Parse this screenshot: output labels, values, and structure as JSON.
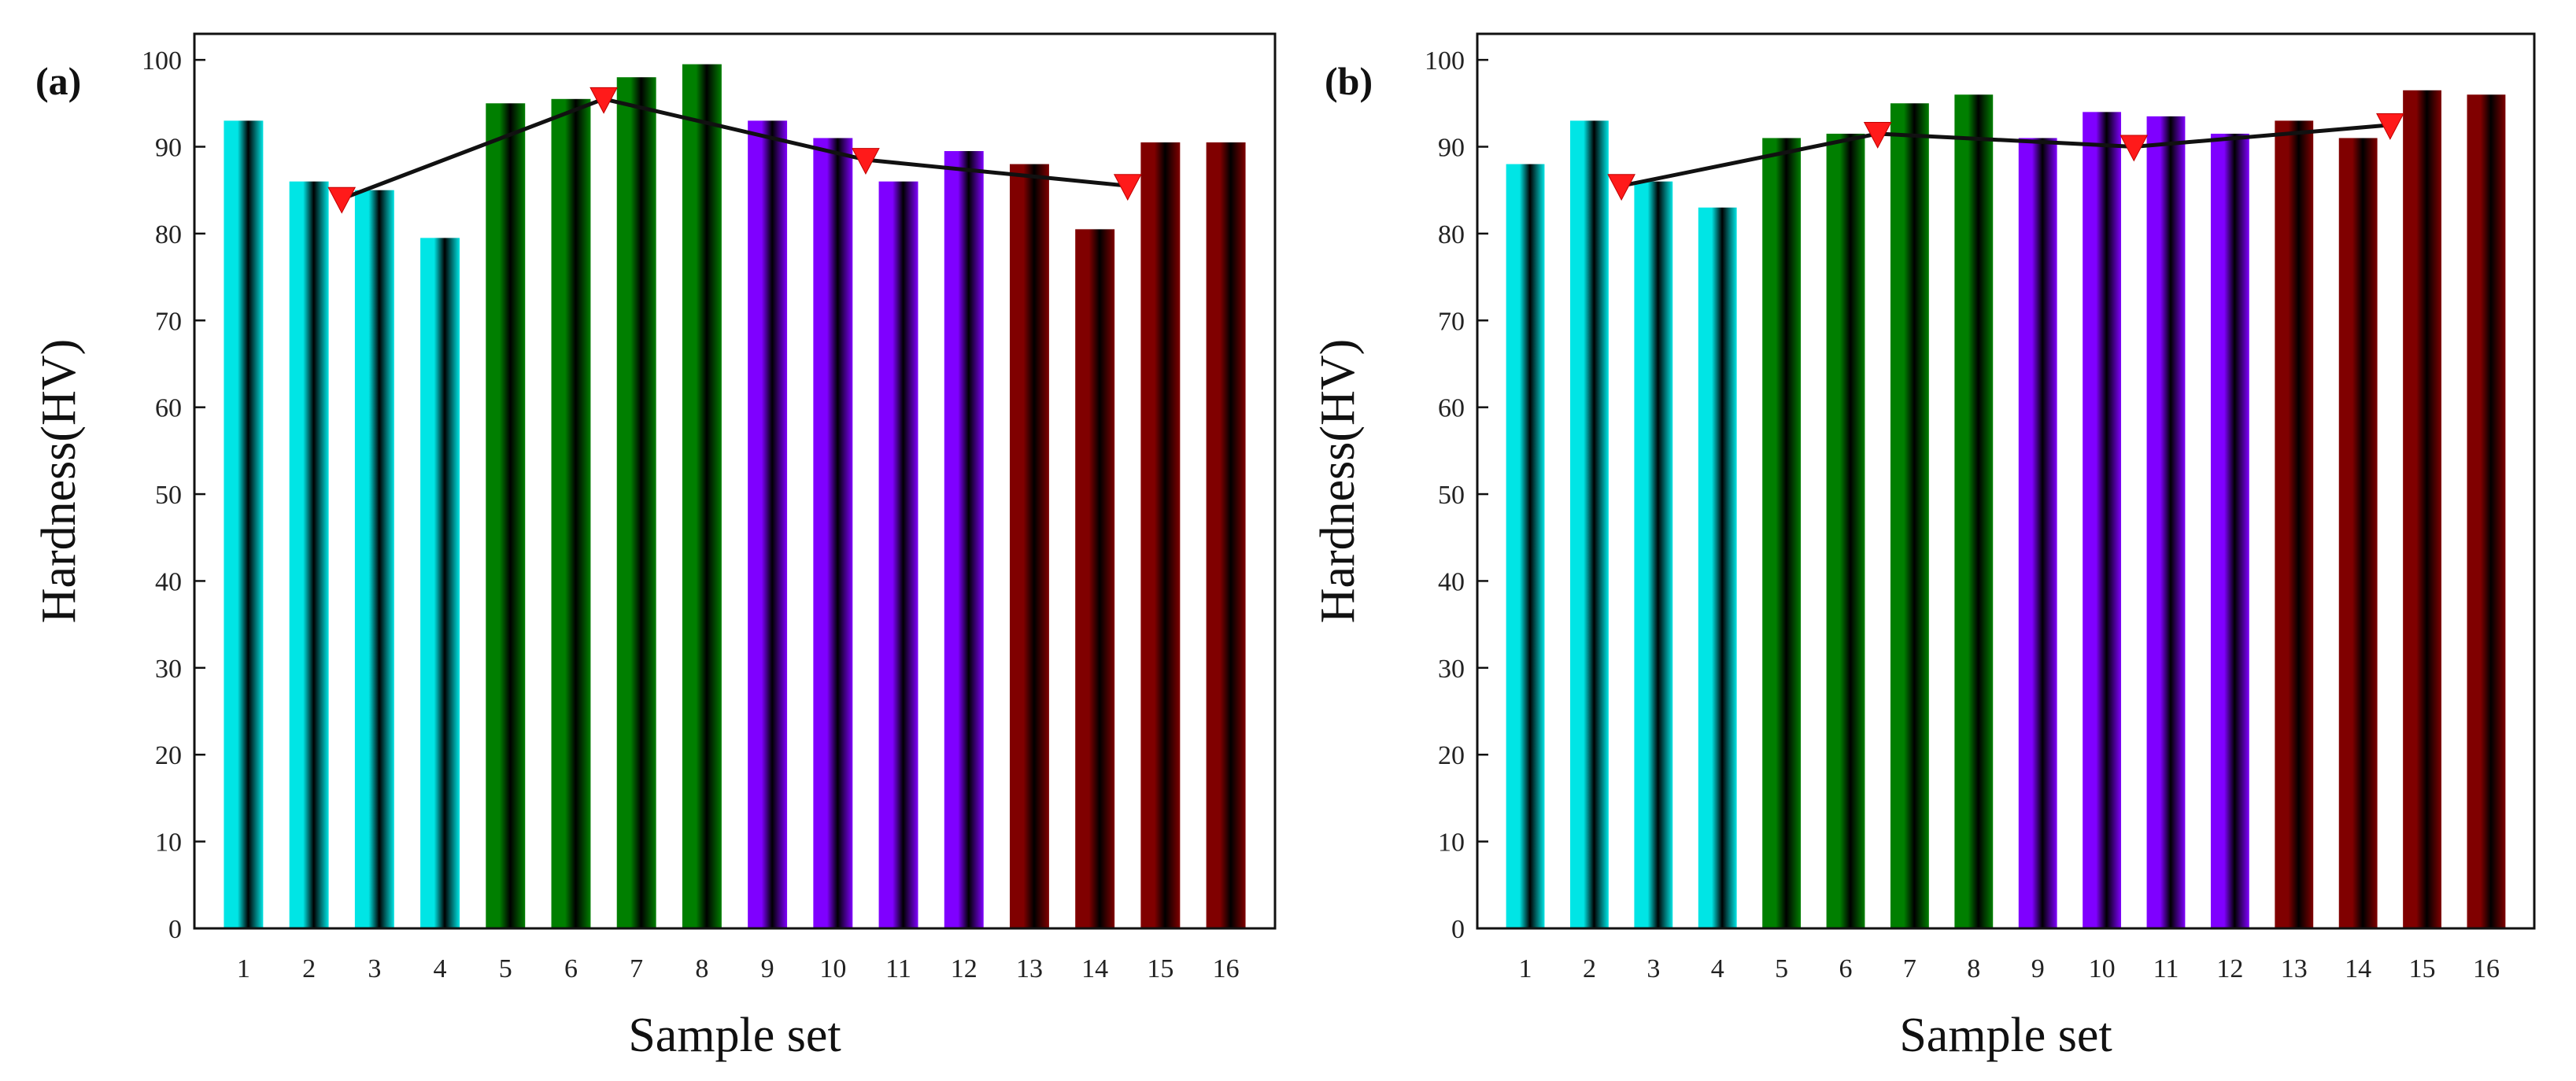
{
  "chart_data": [
    {
      "panel": "(a)",
      "type": "bar",
      "xlabel": "Sample set",
      "ylabel": "Hardness(HV)",
      "ylim": [
        0,
        103
      ],
      "yticks": [
        0,
        10,
        20,
        30,
        40,
        50,
        60,
        70,
        80,
        90,
        100
      ],
      "categories": [
        "1",
        "2",
        "3",
        "4",
        "5",
        "6",
        "7",
        "8",
        "9",
        "10",
        "11",
        "12",
        "13",
        "14",
        "15",
        "16"
      ],
      "values": [
        93,
        86,
        85,
        79.5,
        95,
        95.5,
        98,
        99.5,
        93,
        91,
        86,
        89.5,
        88,
        80.5,
        90.5,
        90.5
      ],
      "group_colors": [
        "#00e5e5",
        "#007f00",
        "#7f00ff",
        "#800000"
      ],
      "trend_line": {
        "marker": "red-down-triangle",
        "points": [
          {
            "x": 2.5,
            "y": 84
          },
          {
            "x": 6.5,
            "y": 95.5
          },
          {
            "x": 10.5,
            "y": 88.5
          },
          {
            "x": 14.5,
            "y": 85.5
          }
        ]
      }
    },
    {
      "panel": "(b)",
      "type": "bar",
      "xlabel": "Sample set",
      "ylabel": "Hardness(HV)",
      "ylim": [
        0,
        103
      ],
      "yticks": [
        0,
        10,
        20,
        30,
        40,
        50,
        60,
        70,
        80,
        90,
        100
      ],
      "categories": [
        "1",
        "2",
        "3",
        "4",
        "5",
        "6",
        "7",
        "8",
        "9",
        "10",
        "11",
        "12",
        "13",
        "14",
        "15",
        "16"
      ],
      "values": [
        88,
        93,
        86,
        83,
        91,
        91.5,
        95,
        96,
        91,
        94,
        93.5,
        91.5,
        93,
        91,
        96.5,
        96
      ],
      "group_colors": [
        "#00e5e5",
        "#007f00",
        "#7f00ff",
        "#800000"
      ],
      "trend_line": {
        "marker": "red-down-triangle",
        "points": [
          {
            "x": 2.5,
            "y": 85.5
          },
          {
            "x": 6.5,
            "y": 91.5
          },
          {
            "x": 10.5,
            "y": 90
          },
          {
            "x": 14.5,
            "y": 92.5
          }
        ]
      }
    }
  ]
}
